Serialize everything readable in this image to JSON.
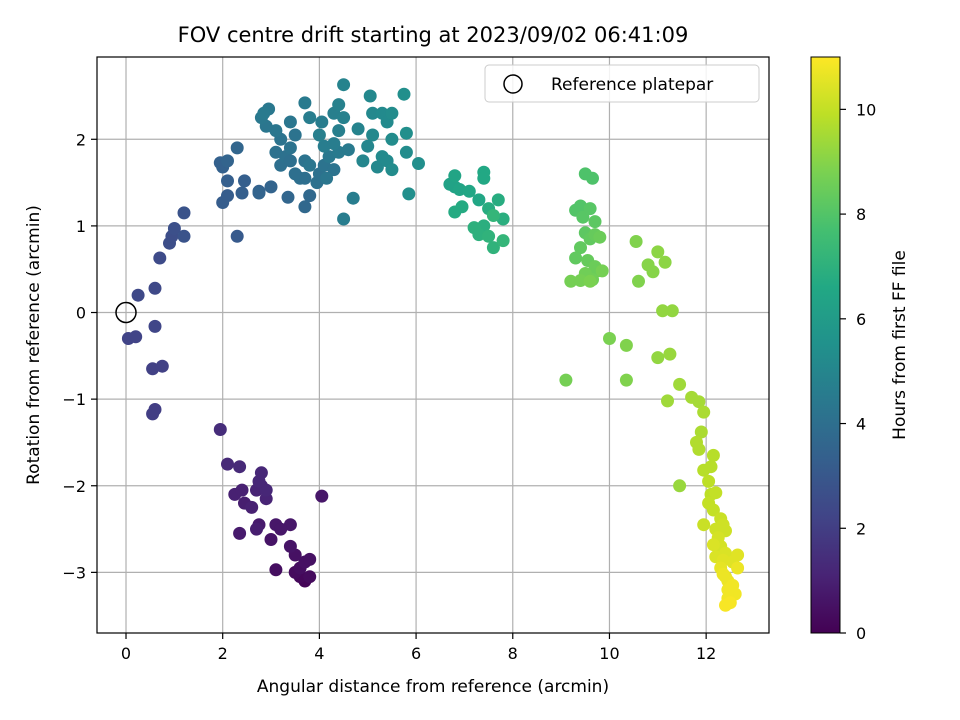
{
  "chart_data": {
    "type": "scatter",
    "title": "FOV centre drift starting at 2023/09/02 06:41:09",
    "xlabel": "Angular distance from reference (arcmin)",
    "ylabel": "Rotation from reference (arcmin)",
    "xlim": [
      -0.6,
      13.3
    ],
    "ylim": [
      -3.7,
      2.95
    ],
    "xticks": [
      "0",
      "2",
      "4",
      "6",
      "8",
      "10",
      "12"
    ],
    "yticks": [
      "−3",
      "−2",
      "−1",
      "0",
      "1",
      "2"
    ],
    "grid": true,
    "legend": {
      "placement": "top-right",
      "entries": [
        "Reference platepar"
      ]
    },
    "reference_point": {
      "x": 0,
      "y": 0
    },
    "colorbar": {
      "label": "Hours from first FF file",
      "range": [
        0,
        11
      ],
      "ticks": [
        "0",
        "2",
        "4",
        "6",
        "8",
        "10"
      ],
      "colormap": "viridis"
    },
    "series": [
      {
        "points": [
          [
            3.7,
            -3.1
          ],
          [
            3.6,
            -3.05
          ],
          [
            3.8,
            -3.05
          ],
          [
            3.5,
            -3.0
          ],
          [
            3.1,
            -2.97
          ],
          [
            3.6,
            -2.95
          ],
          [
            3.7,
            -2.88
          ],
          [
            3.5,
            -2.8
          ],
          [
            3.8,
            -2.85
          ],
          [
            3.4,
            -2.7
          ],
          [
            3.0,
            -2.62
          ],
          [
            3.1,
            -2.45
          ],
          [
            3.4,
            -2.45
          ],
          [
            3.2,
            -2.5
          ],
          [
            2.35,
            -2.55
          ],
          [
            2.75,
            -2.45
          ],
          [
            2.7,
            -2.5
          ],
          [
            2.45,
            -2.2
          ],
          [
            2.6,
            -2.25
          ],
          [
            2.25,
            -2.1
          ],
          [
            2.4,
            -2.05
          ],
          [
            2.7,
            -2.05
          ],
          [
            2.8,
            -2.0
          ],
          [
            2.9,
            -2.15
          ],
          [
            2.9,
            -2.05
          ],
          [
            2.75,
            -1.95
          ],
          [
            2.8,
            -1.85
          ],
          [
            4.05,
            -2.12
          ],
          [
            2.35,
            -1.78
          ],
          [
            2.1,
            -1.75
          ],
          [
            1.95,
            -1.35
          ],
          [
            0.55,
            -1.17
          ],
          [
            0.6,
            -1.12
          ],
          [
            0.55,
            -0.65
          ],
          [
            0.75,
            -0.62
          ],
          [
            0.05,
            -0.3
          ],
          [
            0.2,
            -0.28
          ],
          [
            0.6,
            -0.16
          ],
          [
            0.6,
            0.28
          ],
          [
            0.25,
            0.2
          ],
          [
            0.7,
            0.63
          ],
          [
            0.9,
            0.8
          ],
          [
            0.95,
            0.88
          ],
          [
            1.0,
            0.97
          ],
          [
            1.2,
            0.88
          ],
          [
            1.2,
            1.15
          ],
          [
            2.3,
            0.88
          ],
          [
            2.0,
            1.27
          ],
          [
            2.1,
            1.35
          ],
          [
            2.4,
            1.38
          ],
          [
            2.75,
            1.4
          ],
          [
            3.0,
            1.45
          ],
          [
            3.35,
            1.33
          ],
          [
            3.8,
            1.35
          ],
          [
            3.7,
            1.22
          ],
          [
            2.45,
            1.52
          ],
          [
            2.1,
            1.52
          ],
          [
            2.0,
            1.68
          ],
          [
            1.95,
            1.73
          ],
          [
            2.1,
            1.75
          ],
          [
            2.3,
            1.9
          ],
          [
            2.75,
            1.38
          ],
          [
            3.6,
            1.55
          ],
          [
            3.7,
            1.55
          ],
          [
            3.95,
            1.5
          ],
          [
            4.0,
            1.6
          ],
          [
            4.1,
            1.7
          ],
          [
            4.3,
            1.65
          ],
          [
            3.2,
            1.7
          ],
          [
            3.5,
            1.6
          ],
          [
            3.3,
            1.8
          ],
          [
            3.1,
            1.85
          ],
          [
            3.4,
            1.9
          ],
          [
            3.7,
            1.75
          ],
          [
            3.8,
            1.7
          ],
          [
            4.15,
            1.55
          ],
          [
            4.2,
            1.8
          ],
          [
            4.4,
            1.85
          ],
          [
            4.6,
            1.88
          ],
          [
            4.7,
            1.32
          ],
          [
            4.5,
            1.08
          ],
          [
            3.4,
            1.75
          ],
          [
            3.2,
            2.0
          ],
          [
            3.5,
            2.05
          ],
          [
            3.4,
            2.2
          ],
          [
            3.1,
            2.1
          ],
          [
            2.9,
            2.15
          ],
          [
            2.8,
            2.25
          ],
          [
            2.95,
            2.35
          ],
          [
            2.85,
            2.3
          ],
          [
            3.7,
            2.42
          ],
          [
            3.8,
            2.25
          ],
          [
            4.05,
            2.2
          ],
          [
            4.3,
            2.3
          ],
          [
            4.4,
            2.1
          ],
          [
            4.5,
            2.25
          ],
          [
            4.4,
            2.4
          ],
          [
            4.5,
            2.63
          ],
          [
            4.3,
            1.95
          ],
          [
            4.1,
            1.92
          ],
          [
            4.0,
            2.05
          ],
          [
            4.8,
            2.12
          ],
          [
            4.9,
            1.75
          ],
          [
            5.0,
            1.92
          ],
          [
            5.1,
            2.05
          ],
          [
            5.2,
            1.68
          ],
          [
            5.3,
            1.8
          ],
          [
            5.4,
            1.75
          ],
          [
            5.5,
            1.65
          ],
          [
            5.8,
            1.85
          ],
          [
            5.85,
            1.37
          ],
          [
            6.05,
            1.72
          ],
          [
            5.05,
            2.5
          ],
          [
            5.1,
            2.3
          ],
          [
            5.3,
            2.3
          ],
          [
            5.4,
            2.2
          ],
          [
            5.5,
            2.3
          ],
          [
            5.5,
            2.0
          ],
          [
            5.75,
            2.52
          ],
          [
            5.8,
            2.07
          ],
          [
            6.7,
            1.48
          ],
          [
            6.8,
            1.45
          ],
          [
            6.9,
            1.42
          ],
          [
            6.8,
            1.58
          ],
          [
            7.1,
            1.4
          ],
          [
            7.3,
            1.3
          ],
          [
            7.4,
            1.62
          ],
          [
            7.4,
            1.55
          ],
          [
            6.95,
            1.22
          ],
          [
            6.8,
            1.16
          ],
          [
            7.5,
            1.2
          ],
          [
            7.7,
            1.3
          ],
          [
            7.8,
            1.08
          ],
          [
            7.4,
            1.0
          ],
          [
            7.2,
            0.98
          ],
          [
            7.3,
            0.9
          ],
          [
            7.5,
            0.88
          ],
          [
            7.6,
            0.75
          ],
          [
            7.8,
            0.83
          ],
          [
            7.6,
            1.12
          ],
          [
            9.5,
            1.6
          ],
          [
            9.65,
            1.55
          ],
          [
            9.3,
            1.18
          ],
          [
            9.4,
            1.23
          ],
          [
            9.45,
            1.1
          ],
          [
            9.6,
            1.2
          ],
          [
            9.7,
            1.05
          ],
          [
            9.5,
            0.92
          ],
          [
            9.6,
            0.85
          ],
          [
            9.4,
            0.75
          ],
          [
            9.3,
            0.63
          ],
          [
            9.55,
            0.6
          ],
          [
            9.7,
            0.9
          ],
          [
            9.8,
            0.87
          ],
          [
            9.7,
            0.53
          ],
          [
            9.75,
            0.48
          ],
          [
            9.5,
            0.45
          ],
          [
            9.65,
            0.38
          ],
          [
            9.85,
            0.48
          ],
          [
            9.2,
            0.36
          ],
          [
            9.4,
            0.37
          ],
          [
            9.6,
            0.36
          ],
          [
            10.55,
            0.82
          ],
          [
            10.6,
            0.36
          ],
          [
            10.8,
            0.55
          ],
          [
            10.9,
            0.47
          ],
          [
            11.0,
            0.7
          ],
          [
            11.15,
            0.58
          ],
          [
            11.1,
            0.02
          ],
          [
            11.3,
            0.02
          ],
          [
            10.0,
            -0.3
          ],
          [
            10.35,
            -0.38
          ],
          [
            11.0,
            -0.52
          ],
          [
            11.25,
            -0.48
          ],
          [
            10.35,
            -0.78
          ],
          [
            9.1,
            -0.78
          ],
          [
            11.2,
            -1.02
          ],
          [
            11.45,
            -0.83
          ],
          [
            11.7,
            -0.98
          ],
          [
            11.85,
            -1.03
          ],
          [
            11.95,
            -1.15
          ],
          [
            11.9,
            -1.38
          ],
          [
            11.8,
            -1.5
          ],
          [
            11.85,
            -1.58
          ],
          [
            11.45,
            -2.0
          ],
          [
            11.95,
            -1.82
          ],
          [
            12.1,
            -1.78
          ],
          [
            12.15,
            -1.65
          ],
          [
            12.05,
            -1.95
          ],
          [
            12.1,
            -2.1
          ],
          [
            12.2,
            -2.08
          ],
          [
            12.05,
            -2.2
          ],
          [
            12.15,
            -2.28
          ],
          [
            11.95,
            -2.45
          ],
          [
            12.3,
            -2.38
          ],
          [
            12.35,
            -2.45
          ],
          [
            12.2,
            -2.5
          ],
          [
            12.4,
            -2.52
          ],
          [
            12.25,
            -2.6
          ],
          [
            12.3,
            -2.7
          ],
          [
            12.15,
            -2.68
          ],
          [
            12.4,
            -2.78
          ],
          [
            12.2,
            -2.82
          ],
          [
            12.35,
            -2.86
          ],
          [
            12.55,
            -2.88
          ],
          [
            12.65,
            -2.8
          ],
          [
            12.3,
            -2.95
          ],
          [
            12.4,
            -3.05
          ],
          [
            12.65,
            -2.95
          ],
          [
            12.45,
            -3.1
          ],
          [
            12.55,
            -3.15
          ],
          [
            12.6,
            -3.25
          ],
          [
            12.45,
            -3.3
          ],
          [
            12.5,
            -3.35
          ],
          [
            12.4,
            -3.38
          ],
          [
            12.45,
            -3.2
          ],
          [
            12.35,
            -3.02
          ]
        ],
        "hours": [
          0.1,
          0.2,
          0.3,
          0.3,
          0.4,
          0.4,
          0.5,
          0.5,
          0.5,
          0.6,
          0.6,
          0.7,
          0.7,
          0.7,
          0.8,
          0.8,
          0.9,
          0.9,
          1.0,
          1.0,
          1.0,
          1.1,
          1.1,
          1.1,
          1.2,
          1.2,
          1.2,
          0.7,
          1.3,
          1.3,
          1.4,
          2.0,
          2.0,
          2.1,
          2.1,
          2.2,
          2.2,
          2.3,
          2.4,
          2.4,
          2.5,
          2.6,
          2.6,
          2.7,
          2.8,
          2.8,
          3.1,
          3.2,
          3.2,
          3.3,
          3.4,
          3.5,
          3.6,
          3.7,
          3.7,
          3.3,
          3.3,
          3.4,
          3.4,
          3.5,
          3.6,
          3.5,
          4.0,
          4.0,
          4.1,
          4.1,
          4.2,
          4.2,
          4.0,
          4.0,
          4.1,
          4.1,
          4.2,
          4.2,
          4.3,
          4.3,
          4.4,
          4.5,
          4.5,
          4.6,
          4.6,
          4.0,
          4.2,
          4.2,
          4.3,
          4.3,
          4.3,
          4.4,
          4.4,
          4.5,
          4.5,
          4.6,
          4.6,
          4.7,
          4.7,
          4.8,
          4.8,
          4.9,
          4.6,
          4.6,
          4.7,
          4.9,
          5.0,
          5.0,
          5.1,
          5.1,
          5.2,
          5.2,
          5.3,
          5.3,
          5.4,
          5.4,
          5.1,
          5.1,
          5.2,
          5.2,
          5.3,
          5.3,
          5.4,
          5.4,
          6.3,
          6.3,
          6.4,
          6.4,
          6.5,
          6.5,
          6.6,
          6.6,
          6.7,
          6.7,
          6.8,
          6.8,
          6.9,
          6.9,
          7.0,
          7.0,
          7.1,
          7.1,
          7.2,
          7.2,
          7.9,
          7.9,
          8.0,
          8.0,
          8.1,
          8.1,
          8.2,
          8.2,
          8.3,
          8.3,
          8.3,
          8.4,
          8.4,
          8.5,
          8.5,
          8.5,
          8.6,
          8.6,
          8.7,
          8.7,
          8.7,
          8.8,
          8.9,
          8.9,
          9.0,
          9.0,
          9.1,
          9.1,
          9.2,
          9.2,
          8.8,
          8.9,
          9.2,
          9.3,
          8.9,
          8.7,
          9.4,
          9.4,
          9.5,
          9.5,
          9.6,
          9.6,
          9.7,
          9.7,
          9.3,
          9.8,
          9.8,
          9.8,
          9.9,
          9.9,
          10.0,
          10.0,
          10.0,
          10.1,
          10.1,
          10.2,
          10.2,
          10.2,
          10.3,
          10.3,
          10.4,
          10.4,
          10.4,
          10.5,
          10.5,
          10.5,
          10.6,
          10.6,
          10.7,
          10.7,
          10.8,
          10.8,
          10.8,
          10.9,
          10.9,
          10.8,
          10.7
        ]
      }
    ]
  },
  "colors": {
    "grid": "#b0b0b0",
    "axis": "#000000",
    "background": "#ffffff"
  }
}
